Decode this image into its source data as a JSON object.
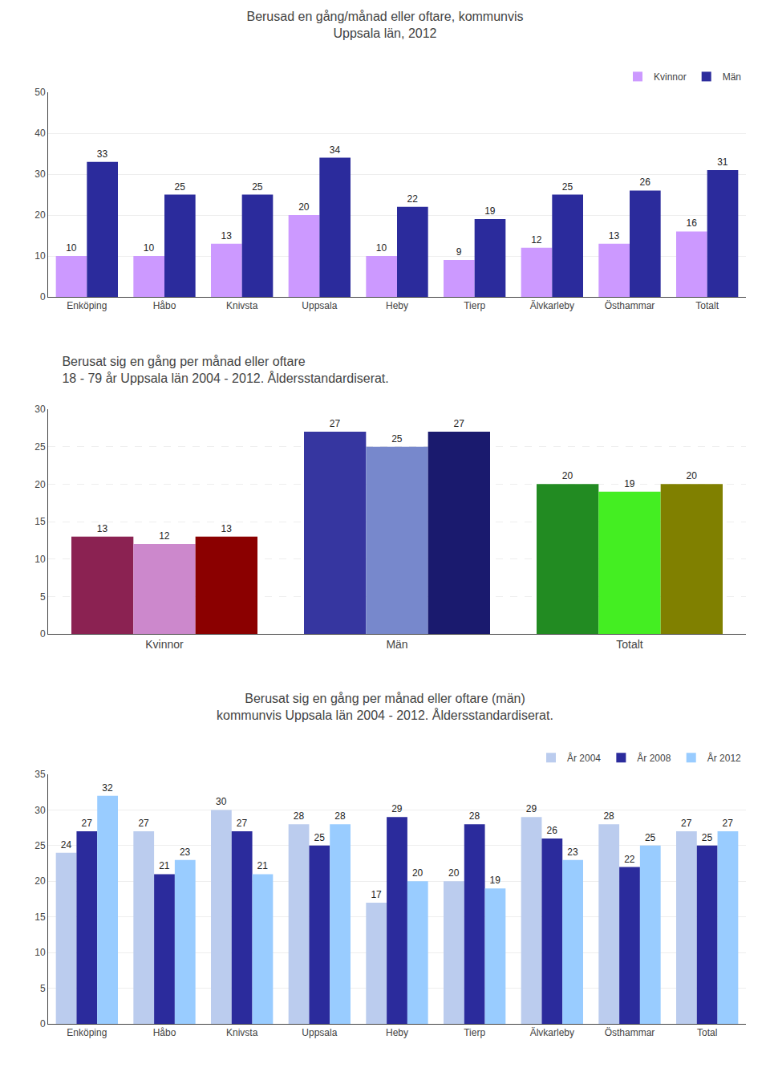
{
  "chart_data": [
    {
      "type": "bar",
      "title": "Berusad en gång/månad eller oftare, kommunvis\nUppsala län, 2012",
      "categories": [
        "Enköping",
        "Håbo",
        "Knivsta",
        "Uppsala",
        "Heby",
        "Tierp",
        "Älvkarleby",
        "Östhammar",
        "Totalt"
      ],
      "series": [
        {
          "name": "Kvinnor",
          "color": "#CC99FF",
          "values": [
            10,
            10,
            13,
            20,
            10,
            9,
            12,
            13,
            16
          ]
        },
        {
          "name": "Män",
          "color": "#2B2B9C",
          "values": [
            33,
            25,
            25,
            34,
            22,
            19,
            25,
            26,
            31
          ]
        }
      ],
      "ylim": [
        0,
        50
      ],
      "yticks": [
        0,
        10,
        20,
        30,
        40,
        50
      ],
      "grid": true,
      "data_labels": true,
      "legend": "upper right"
    },
    {
      "type": "bar",
      "title": "Berusat sig en gång per månad eller oftare\n18 - 79 år Uppsala län 2004 - 2012. Åldersstandardiserat.",
      "categories": [
        "Kvinnor",
        "Män",
        "Totalt"
      ],
      "series": [
        {
          "colors": [
            "#8B2252",
            "#3636A0",
            "#228B22"
          ],
          "values": [
            13,
            27,
            20
          ]
        },
        {
          "colors": [
            "#CC88CC",
            "#7788CC",
            "#44EE22"
          ],
          "values": [
            12,
            25,
            19
          ]
        },
        {
          "colors": [
            "#8B0000",
            "#1A1A6E",
            "#808000"
          ],
          "values": [
            13,
            27,
            20
          ]
        }
      ],
      "ylim": [
        0,
        30
      ],
      "yticks": [
        0,
        5,
        10,
        15,
        20,
        25,
        30
      ],
      "grid": true,
      "data_labels": true
    },
    {
      "type": "bar",
      "title": "Berusat sig en gång per månad eller oftare (män)\nkommunvis Uppsala län 2004 - 2012. Åldersstandardiserat.",
      "categories": [
        "Enköping",
        "Håbo",
        "Knivsta",
        "Uppsala",
        "Heby",
        "Tierp",
        "Älvkarleby",
        "Östhammar",
        "Total"
      ],
      "series": [
        {
          "name": "År 2004",
          "color": "#BBCCEE",
          "values": [
            24,
            27,
            30,
            28,
            17,
            20,
            29,
            28,
            27
          ]
        },
        {
          "name": "År 2008",
          "color": "#2B2B9C",
          "values": [
            27,
            21,
            27,
            25,
            29,
            28,
            26,
            22,
            25
          ]
        },
        {
          "name": "År 2012",
          "color": "#99CCFF",
          "values": [
            32,
            23,
            21,
            28,
            20,
            19,
            23,
            25,
            27
          ]
        }
      ],
      "ylim": [
        0,
        35
      ],
      "yticks": [
        0,
        5,
        10,
        15,
        20,
        25,
        30,
        35
      ],
      "grid": true,
      "data_labels": true,
      "legend": "upper right"
    }
  ]
}
